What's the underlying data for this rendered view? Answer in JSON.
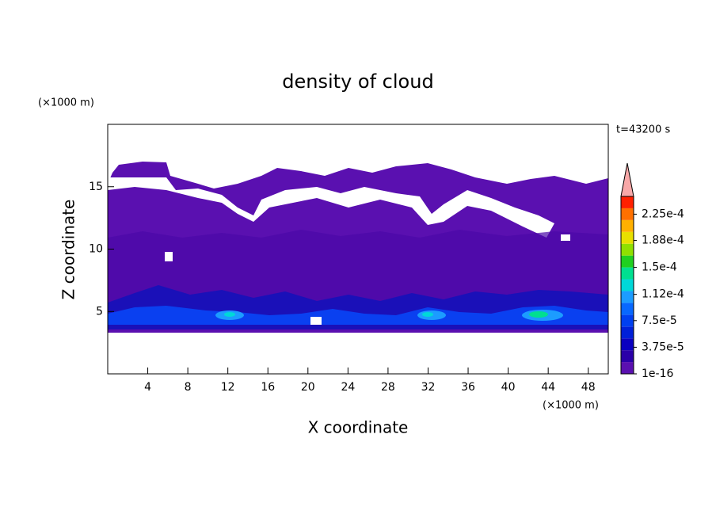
{
  "chart_data": {
    "type": "contour",
    "title": "density of cloud",
    "x_label": "X coordinate",
    "y_label": "Z coordinate",
    "x_unit": "(×1000 m)",
    "y_unit": "(×1000 m)",
    "time_label": "t=43200 s",
    "xlim": [
      0,
      50
    ],
    "xticks": [
      4,
      8,
      12,
      16,
      20,
      24,
      28,
      32,
      36,
      40,
      44,
      48
    ],
    "ylim": [
      0,
      20
    ],
    "yticks": [
      5,
      10,
      15
    ],
    "colorbar": {
      "clim": [
        0,
        0.00025
      ],
      "ticks": [
        {
          "value": 1e-16,
          "label": "1e-16"
        },
        {
          "value": 3.75e-05,
          "label": "3.75e-5"
        },
        {
          "value": 7.5e-05,
          "label": "7.5e-5"
        },
        {
          "value": 0.000112,
          "label": "1.12e-4"
        },
        {
          "value": 0.00015,
          "label": "1.5e-4"
        },
        {
          "value": 0.000188,
          "label": "1.88e-4"
        },
        {
          "value": 0.000225,
          "label": "2.25e-4"
        }
      ],
      "colors": [
        "#5a10b0",
        "#2a00a8",
        "#0a00c0",
        "#0020d8",
        "#0040f0",
        "#0868ff",
        "#1c9cff",
        "#00d8d8",
        "#00e090",
        "#20d020",
        "#90e000",
        "#e8e000",
        "#ffb000",
        "#ff7000",
        "#ff2000"
      ],
      "extend_color": "#f8a8a8"
    }
  }
}
